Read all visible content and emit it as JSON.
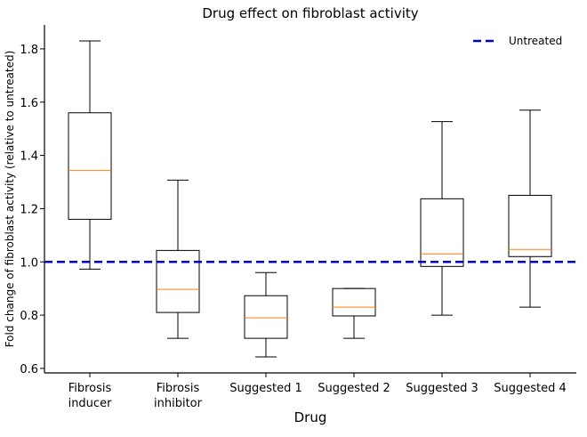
{
  "chart_data": {
    "type": "box",
    "title": "Drug effect on fibroblast activity",
    "xlabel": "Drug",
    "ylabel": "Fold change of fibroblast activity (relative to untreated)",
    "ylim": [
      0.583,
      1.89
    ],
    "yticks": [
      "0.6",
      "0.8",
      "1.0",
      "1.2",
      "1.4",
      "1.6",
      "1.8"
    ],
    "ytick_values": [
      0.6,
      0.8,
      1.0,
      1.2,
      1.4,
      1.6,
      1.8
    ],
    "categories": [
      [
        "Fibrosis",
        "inducer"
      ],
      [
        "Fibrosis",
        "inhibitor"
      ],
      [
        "Suggested 1"
      ],
      [
        "Suggested 2"
      ],
      [
        "Suggested 3"
      ],
      [
        "Suggested 4"
      ]
    ],
    "boxes": [
      {
        "whislo": 0.973,
        "q1": 1.16,
        "med": 1.343,
        "q3": 1.56,
        "whishi": 1.83
      },
      {
        "whislo": 0.713,
        "q1": 0.81,
        "med": 0.897,
        "q3": 1.043,
        "whishi": 1.307
      },
      {
        "whislo": 0.643,
        "q1": 0.713,
        "med": 0.79,
        "q3": 0.873,
        "whishi": 0.96
      },
      {
        "whislo": 0.713,
        "q1": 0.797,
        "med": 0.83,
        "q3": 0.9,
        "whishi": 0.9
      },
      {
        "whislo": 0.8,
        "q1": 0.983,
        "med": 1.03,
        "q3": 1.237,
        "whishi": 1.527
      },
      {
        "whislo": 0.83,
        "q1": 1.02,
        "med": 1.047,
        "q3": 1.25,
        "whishi": 1.57
      }
    ],
    "reference_line": {
      "name": "Untreated",
      "y": 1.0,
      "color": "#0000cc",
      "style": "dashed"
    },
    "legend": {
      "placement": "top-right",
      "entries": [
        "Untreated"
      ]
    },
    "median_color": "#ff7f0e",
    "grid": false
  }
}
